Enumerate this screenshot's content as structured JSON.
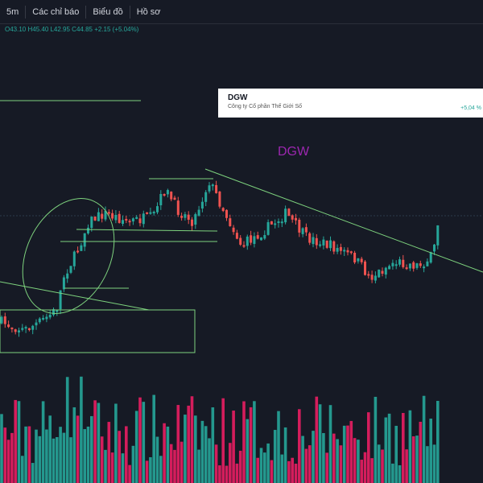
{
  "toolbar": {
    "interval": "5m",
    "indicators": "Các chỉ báo",
    "chart": "Biểu đồ",
    "profile": "Hồ sơ"
  },
  "legend": {
    "ohlc": "O43.10 H45.40 L42.95 C44.85 +2.15 (+5.04%)"
  },
  "card": {
    "symbol": "DGW",
    "name": "Công ty Cổ phần Thế Giới Số",
    "change": "+5,04 %"
  },
  "chart_label": "DGW"
}
